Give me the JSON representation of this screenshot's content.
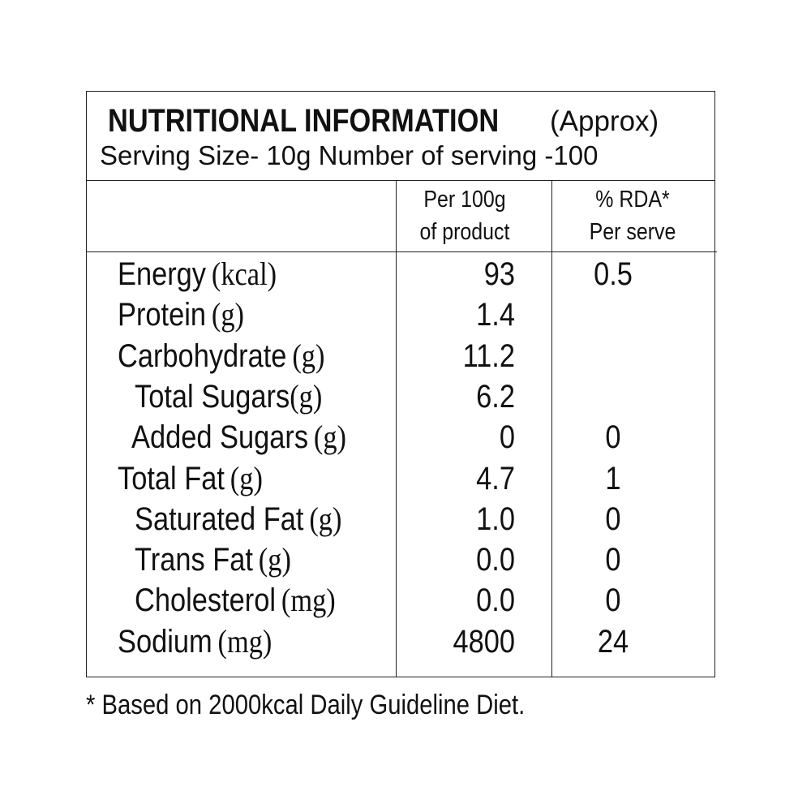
{
  "header": {
    "title": "NUTRITIONAL INFORMATION",
    "title_note": "(Approx)",
    "serving": "Serving Size- 10g  Number of serving -100"
  },
  "table": {
    "columns": [
      [
        "Per 100g",
        "of product"
      ],
      [
        "% RDA*",
        "Per serve"
      ]
    ],
    "rows": [
      {
        "name": "Energy",
        "unit": "(kcal)",
        "per100": "93",
        "rda": "0.5"
      },
      {
        "name": "Protein",
        "unit": "(g)",
        "per100": "1.4",
        "rda": null
      },
      {
        "name": "Carbohydrate",
        "unit": "(g)",
        "per100": "11.2",
        "rda": null
      },
      {
        "name": "Total Sugars",
        "unit": "(g)",
        "per100": "6.2",
        "rda": null
      },
      {
        "name": "Added Sugars",
        "unit": "(g)",
        "per100": "0",
        "rda": "0"
      },
      {
        "name": "Total Fat",
        "unit": "(g)",
        "per100": "4.7",
        "rda": "1"
      },
      {
        "name": "Saturated Fat",
        "unit": "(g)",
        "per100": "1.0",
        "rda": "0"
      },
      {
        "name": "Trans Fat",
        "unit": "(g)",
        "per100": "0.0",
        "rda": "0"
      },
      {
        "name": "Cholesterol",
        "unit": "(mg)",
        "per100": "0.0",
        "rda": "0"
      },
      {
        "name": "Sodium",
        "unit": "(mg)",
        "per100": "4800",
        "rda": "24"
      }
    ]
  },
  "footnote": "* Based on 2000kcal Daily Guideline Diet."
}
